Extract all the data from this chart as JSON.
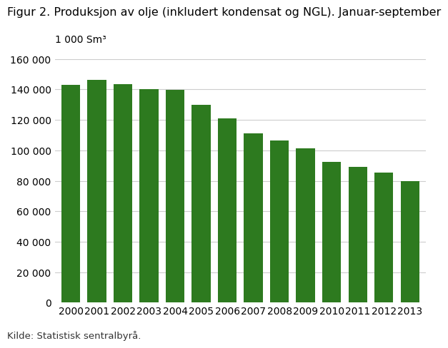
{
  "title": "Figur 2. Produksjon av olje (inkludert kondensat og NGL). Januar-september",
  "ylabel": "1 000 Sm³",
  "source": "Kilde: Statistisk sentralbyrå.",
  "categories": [
    "2000",
    "2001",
    "2002",
    "2003",
    "2004",
    "2005",
    "2006",
    "2007",
    "2008",
    "2009",
    "2010",
    "2011",
    "2012",
    "2013"
  ],
  "values": [
    143000,
    146500,
    143500,
    140000,
    139500,
    130000,
    121000,
    111000,
    106500,
    101500,
    92500,
    89000,
    85500,
    80000
  ],
  "bar_color": "#2d7a1f",
  "ylim": [
    0,
    160000
  ],
  "yticks": [
    0,
    20000,
    40000,
    60000,
    80000,
    100000,
    120000,
    140000,
    160000
  ],
  "ytick_labels": [
    "0",
    "20 000",
    "40 000",
    "60 000",
    "80 000",
    "100 000",
    "120 000",
    "140 000",
    "160 000"
  ],
  "background_color": "#ffffff",
  "plot_bg_color": "#ffffff",
  "grid_color": "#cccccc",
  "title_fontsize": 11.5,
  "axis_fontsize": 10,
  "source_fontsize": 9.5
}
